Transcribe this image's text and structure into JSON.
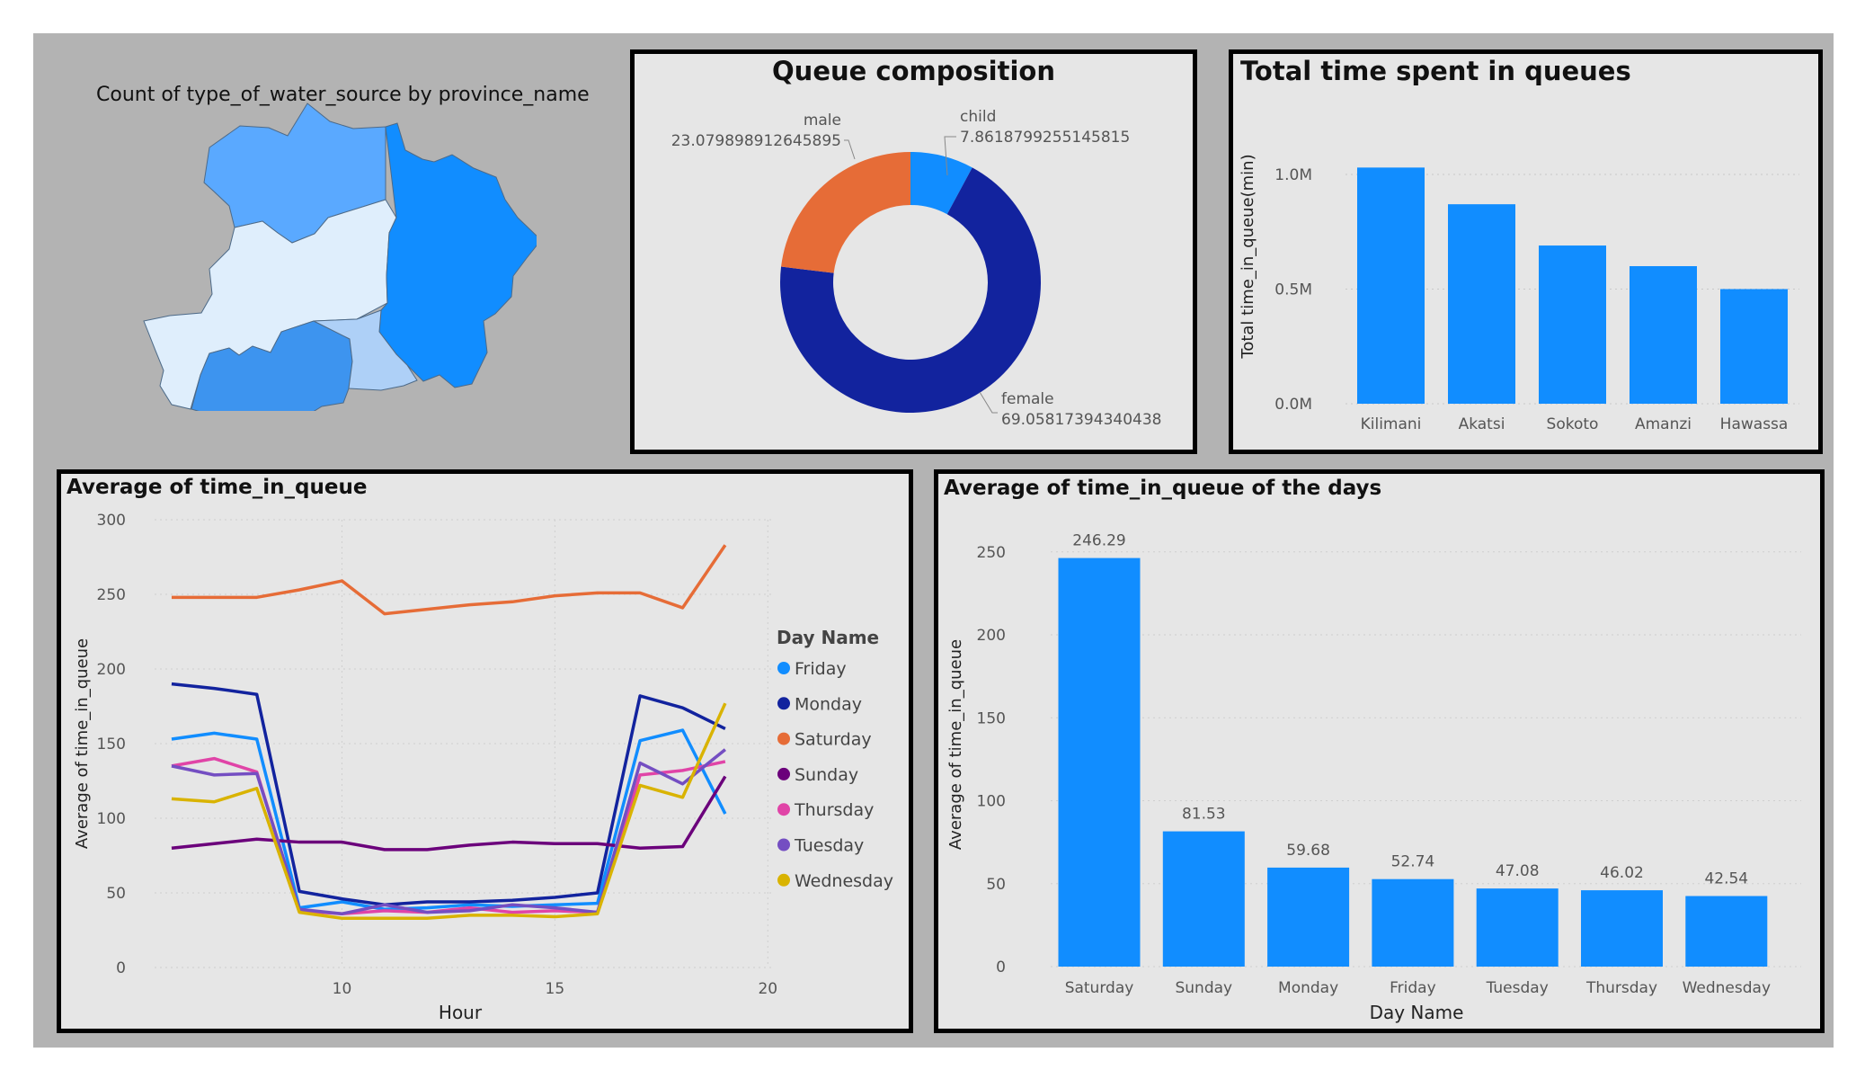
{
  "colors": {
    "background": "#b3b3b3",
    "panel": "#e6e6e6",
    "bar": "#118dff",
    "female": "#12239e",
    "male": "#e66c37",
    "child": "#118dff"
  },
  "map": {
    "title": "Count of type_of_water_source by province_name",
    "region_colors": [
      "#5aa9ff",
      "#dfeefc",
      "#118dff",
      "#3d94ef",
      "#aed0f7"
    ]
  },
  "chart_data": [
    {
      "id": "queue-composition",
      "type": "pie",
      "title": "Queue composition",
      "slices": [
        {
          "label": "child",
          "value": 7.8618799255145815,
          "value_text": "7.8618799255145815"
        },
        {
          "label": "female",
          "value": 69.05817394340438,
          "value_text": "69.05817394340438"
        },
        {
          "label": "male",
          "value": 23.079898912645895,
          "value_text": "23.079898912645895"
        }
      ]
    },
    {
      "id": "total-time",
      "type": "bar",
      "title": "Total time spent in queues",
      "ylabel": "Total time_in_queue(min)",
      "xlabel": "",
      "categories": [
        "Kilimani",
        "Akatsi",
        "Sokoto",
        "Amanzi",
        "Hawassa"
      ],
      "values": [
        1030000,
        870000,
        690000,
        600000,
        500000
      ],
      "ylim": [
        0,
        1000000
      ],
      "yticks": [
        0,
        500000,
        1000000
      ],
      "ytick_labels": [
        "0.0M",
        "0.5M",
        "1.0M"
      ],
      "grid": true
    },
    {
      "id": "avg-time-hour",
      "type": "line",
      "title": "Average of time_in_queue",
      "xlabel": "Hour",
      "ylabel": "Average of time_in_queue",
      "xlim": [
        5.6,
        20.1
      ],
      "ylim": [
        0,
        300
      ],
      "xticks": [
        10,
        15,
        20
      ],
      "yticks": [
        0,
        50,
        100,
        150,
        200,
        250,
        300
      ],
      "legend_title": "Day Name",
      "legend_position": "right",
      "x": [
        6,
        7,
        8,
        9,
        10,
        11,
        12,
        13,
        14,
        15,
        16,
        17,
        18,
        19
      ],
      "series": [
        {
          "name": "Friday",
          "color": "#118dff",
          "values": [
            153,
            157,
            153,
            40,
            44,
            39,
            40,
            42,
            41,
            42,
            43,
            152,
            159,
            103
          ]
        },
        {
          "name": "Monday",
          "color": "#12239e",
          "values": [
            190,
            187,
            183,
            51,
            46,
            42,
            44,
            44,
            45,
            47,
            50,
            182,
            174,
            160
          ]
        },
        {
          "name": "Saturday",
          "color": "#e66c37",
          "values": [
            248,
            248,
            248,
            253,
            259,
            237,
            240,
            243,
            245,
            249,
            251,
            251,
            241,
            283
          ]
        },
        {
          "name": "Sunday",
          "color": "#6b007b",
          "values": [
            80,
            83,
            86,
            84,
            84,
            79,
            79,
            82,
            84,
            83,
            83,
            80,
            81,
            128
          ]
        },
        {
          "name": "Thursday",
          "color": "#e044a7",
          "values": [
            135,
            140,
            131,
            38,
            36,
            38,
            37,
            40,
            37,
            38,
            37,
            129,
            132,
            138
          ]
        },
        {
          "name": "Tuesday",
          "color": "#744ec2",
          "values": [
            135,
            129,
            130,
            39,
            36,
            42,
            37,
            38,
            42,
            40,
            37,
            137,
            123,
            146
          ]
        },
        {
          "name": "Wednesday",
          "color": "#d9b300",
          "values": [
            113,
            111,
            120,
            37,
            33,
            33,
            33,
            35,
            35,
            34,
            36,
            122,
            114,
            177
          ]
        }
      ]
    },
    {
      "id": "avg-time-days",
      "type": "bar",
      "title": "Average of time_in_queue of the days",
      "xlabel": "Day Name",
      "ylabel": "Average of time_in_queue",
      "categories": [
        "Saturday",
        "Sunday",
        "Monday",
        "Friday",
        "Tuesday",
        "Thursday",
        "Wednesday"
      ],
      "values": [
        246.29,
        81.53,
        59.68,
        52.74,
        47.08,
        46.02,
        42.54
      ],
      "value_labels": [
        "246.29",
        "81.53",
        "59.68",
        "52.74",
        "47.08",
        "46.02",
        "42.54"
      ],
      "ylim": [
        0,
        270
      ],
      "yticks": [
        0,
        50,
        100,
        150,
        200,
        250
      ],
      "grid": true
    }
  ]
}
